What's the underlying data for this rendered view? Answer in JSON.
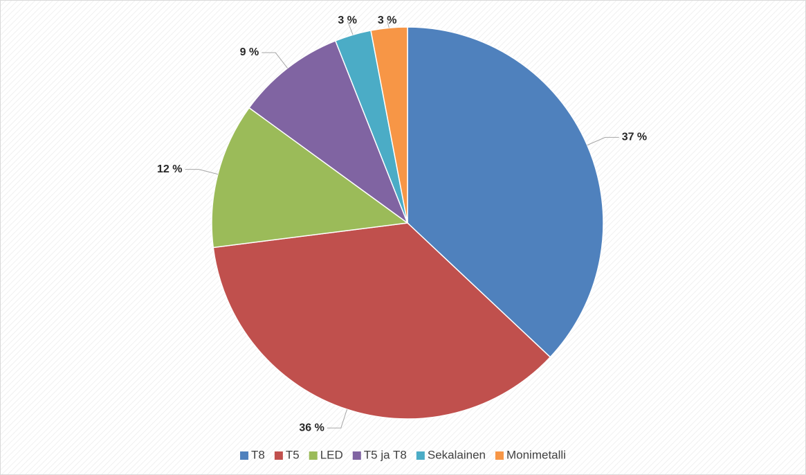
{
  "chart_data": {
    "type": "pie",
    "categories": [
      "T8",
      "T5",
      "LED",
      "T5 ja T8",
      "Sekalainen",
      "Monimetalli"
    ],
    "values": [
      37,
      36,
      12,
      9,
      3,
      3
    ],
    "value_labels": [
      "37 %",
      "36 %",
      "12 %",
      "9 %",
      "3 %",
      "3 %"
    ],
    "colors": [
      "#4f81bd",
      "#c0504d",
      "#9bbb59",
      "#8064a2",
      "#4bacc6",
      "#f79646"
    ],
    "legend": "bottom"
  }
}
